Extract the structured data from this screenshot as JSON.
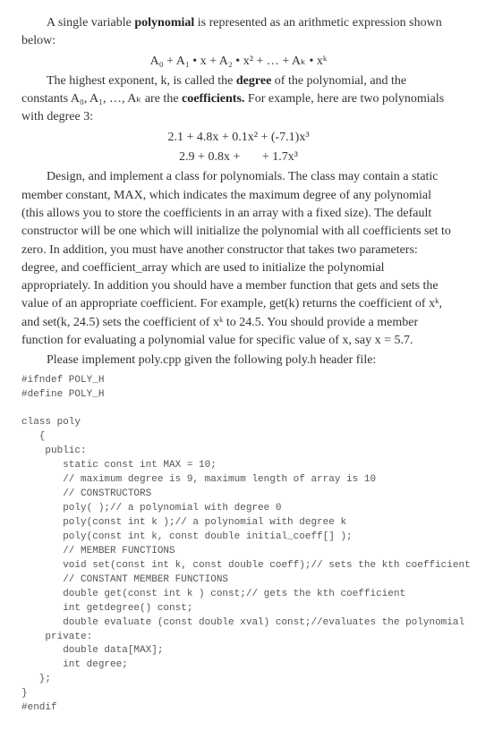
{
  "p1_a": "A single variable ",
  "p1_b": "polynomial",
  "p1_c": " is represented as an arithmetic expression shown below:",
  "formula1": "A₀ + A₁ • x + A₂ • x² + … + Aₖ • xᵏ",
  "p2_a": "The highest exponent, k, is called the ",
  "p2_b": "degree",
  "p2_c": " of the polynomial, and the constants A₀, A₁, …, Aₖ are the ",
  "p2_d": "coefficients.",
  "p2_e": " For example, here are two polynomials with degree 3:",
  "formula2": "2.1 + 4.8x + 0.1x² + (-7.1)x³",
  "formula3": "2.9 + 0.8x +       + 1.7x³",
  "p3": "Design, and implement a class for polynomials. The class may contain a static member constant, MAX, which indicates the maximum degree of any polynomial (this allows you to store the coefficients in an array with a fixed size). The default constructor will be one which will initialize the polynomial with all coefficients set to zero. In addition, you must have another constructor that takes two parameters: degree, and coefficient_array which are used to initialize the polynomial appropriately. In addition you should have a member function that gets and sets the value of an appropriate coefficient. For example, get(k) returns the coefficient of xᵏ, and set(k, 24.5) sets the coefficient of xᵏ to 24.5. You should provide a member function for evaluating a polynomial value for specific value of x, say x = 5.7.",
  "p4": "Please implement poly.cpp given the following poly.h header file:",
  "code": "#ifndef POLY_H\n#define POLY_H\n\nclass poly\n   {\n    public:\n       static const int MAX = 10;\n       // maximum degree is 9, maximum length of array is 10\n       // CONSTRUCTORS\n       poly( );// a polynomial with degree 0\n       poly(const int k );// a polynomial with degree k\n       poly(const int k, const double initial_coeff[] );\n       // MEMBER FUNCTIONS\n       void set(const int k, const double coeff);// sets the kth coefficient\n       // CONSTANT MEMBER FUNCTIONS\n       double get(const int k ) const;// gets the kth coefficient\n       int getdegree() const;\n       double evaluate (const double xval) const;//evaluates the polynomial\n    private:\n       double data[MAX];\n       int degree;\n   };\n}\n#endif"
}
